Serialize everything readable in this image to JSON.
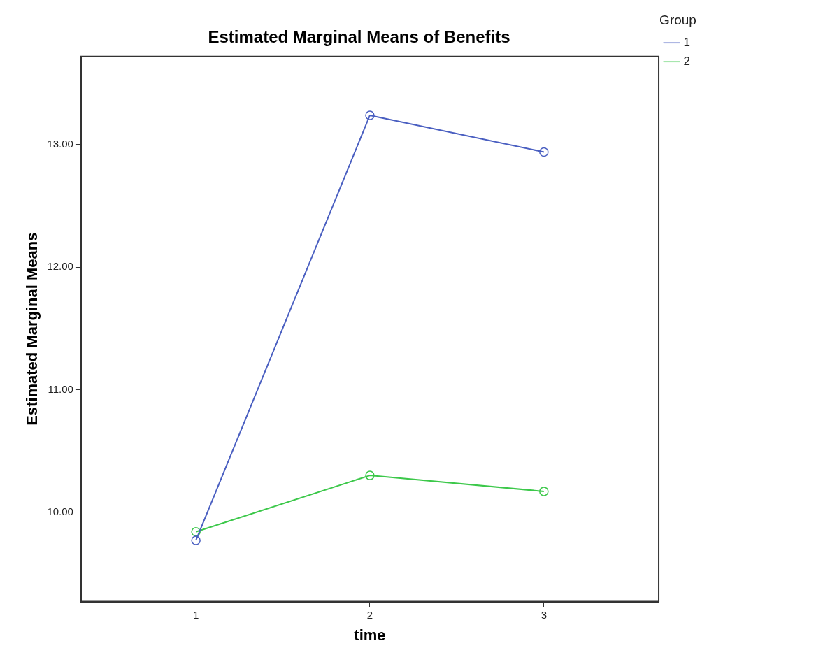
{
  "chart_data": {
    "type": "line",
    "title": "Estimated Marginal Means of Benefits",
    "xlabel": "time",
    "ylabel": "Estimated Marginal Means",
    "legend_title": "Group",
    "categories": [
      "1",
      "2",
      "3"
    ],
    "series": [
      {
        "name": "1",
        "color": "#4a5fc1",
        "values": [
          9.77,
          13.24,
          12.94
        ]
      },
      {
        "name": "2",
        "color": "#3cc84a",
        "values": [
          9.84,
          10.3,
          10.17
        ]
      }
    ],
    "ylim": [
      9.27,
      13.72
    ],
    "yticks": [
      {
        "value": 10,
        "label": "10.00"
      },
      {
        "value": 11,
        "label": "11.00"
      },
      {
        "value": 12,
        "label": "12.00"
      },
      {
        "value": 13,
        "label": "13.00"
      }
    ],
    "grid": false,
    "legend": "top right",
    "marker": "circle",
    "line_style": "solid"
  }
}
